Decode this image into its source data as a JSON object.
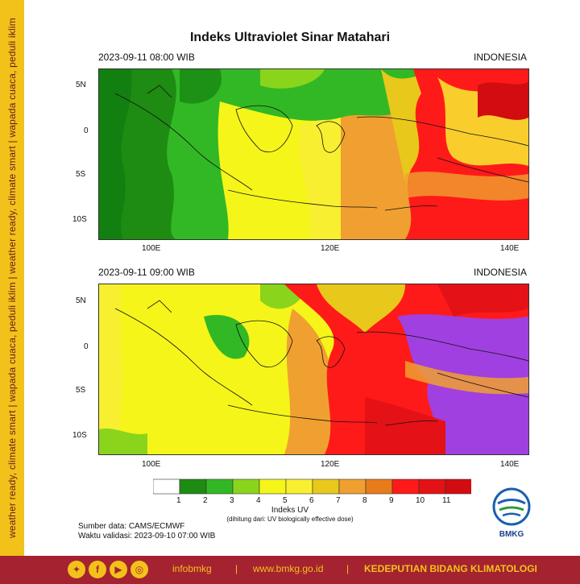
{
  "sidebar": {
    "text": "weather ready, climate smart  |  wapada cuaca, peduli iklim  |  weather ready, climate smart  |  wapada cuaca, peduli iklim"
  },
  "title": "Indeks Ultraviolet Sinar Matahari",
  "panels": [
    {
      "time": "2023-09-11  08:00 WIB",
      "region": "INDONESIA"
    },
    {
      "time": "2023-09-11  09:00 WIB",
      "region": "INDONESIA"
    }
  ],
  "axes": {
    "lat_labels": [
      "5N",
      "0",
      "5S",
      "10S"
    ],
    "lon_labels": [
      "100E",
      "120E",
      "140E"
    ]
  },
  "legend": {
    "ticks": [
      "1",
      "2",
      "3",
      "4",
      "5",
      "6",
      "7",
      "8",
      "9",
      "10",
      "11"
    ],
    "title": "Indeks UV",
    "subtitle": "(dihitung dari: UV biologically effective dose)",
    "colors": [
      "#ffffff",
      "#1e8c12",
      "#32b825",
      "#8ad41c",
      "#f5f51a",
      "#f8ef30",
      "#e8c81a",
      "#f0a030",
      "#e87c1a",
      "#ff1a1a",
      "#e41216",
      "#d20c10",
      "#a040e0"
    ]
  },
  "source": {
    "data": "Sumber data: CAMS/ECMWF",
    "validity": "Waktu validasi: 2023-09-10 07:00 WIB"
  },
  "footer": {
    "handle": "infobmkg",
    "sep": "|",
    "site": "www.bmkg.go.id",
    "dept": "KEDEPUTIAN BIDANG KLIMATOLOGI",
    "icons": [
      "twitter-icon",
      "facebook-icon",
      "youtube-icon",
      "instagram-icon"
    ]
  },
  "logo_text": "BMKG"
}
